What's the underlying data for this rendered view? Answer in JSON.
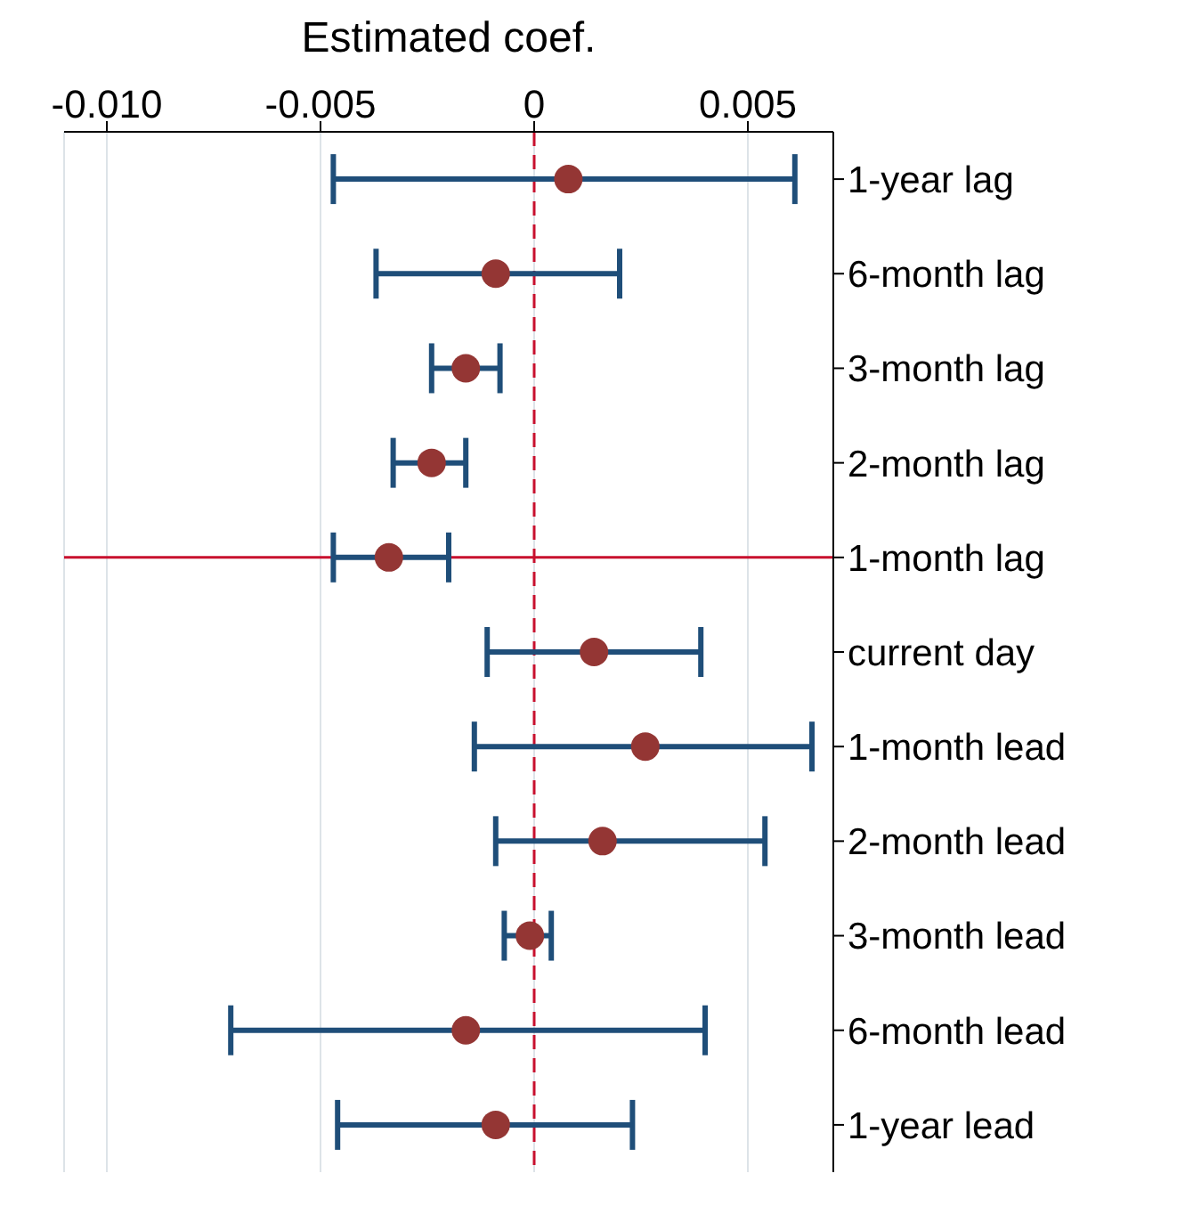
{
  "chart_data": {
    "type": "scatter",
    "orientation": "horizontal",
    "xlabel": "Estimated coef.",
    "categories": [
      "1-year lag",
      "6-month lag",
      "3-month lag",
      "2-month lag",
      "1-month lag",
      "current day",
      "1-month lead",
      "2-month lead",
      "3-month lead",
      "6-month lead",
      "1-year lead"
    ],
    "series": [
      {
        "color": "#943634",
        "values": [
          0.0008,
          -0.0009,
          -0.0016,
          -0.0024,
          -0.0034,
          0.0014,
          0.0026,
          0.0016,
          -0.0001,
          -0.0016,
          -0.0009
        ],
        "errors": [
          [
            -0.0047,
            0.0061
          ],
          [
            -0.0037,
            0.002
          ],
          [
            -0.0024,
            -0.0008
          ],
          [
            -0.0033,
            -0.0016
          ],
          [
            -0.0047,
            -0.002
          ],
          [
            -0.0011,
            0.0039
          ],
          [
            -0.0014,
            0.0065
          ],
          [
            -0.0009,
            0.0054
          ],
          [
            -0.0007,
            0.0004
          ],
          [
            -0.0071,
            0.004
          ],
          [
            -0.0046,
            0.0023
          ]
        ]
      }
    ],
    "xlim": [
      -0.011,
      0.007
    ],
    "xticks": [
      {
        "value": -0.01,
        "label": "-0.010"
      },
      -0.005,
      0,
      0.005
    ],
    "ref_lines": [
      {
        "axis": "x",
        "value": 0,
        "color": "#c8102e",
        "line_style": "dashed"
      },
      {
        "axis": "y",
        "value": "1-month lag",
        "color": "#c8102e",
        "line_style": "solid"
      }
    ],
    "grid": "x",
    "marker": "circle"
  }
}
